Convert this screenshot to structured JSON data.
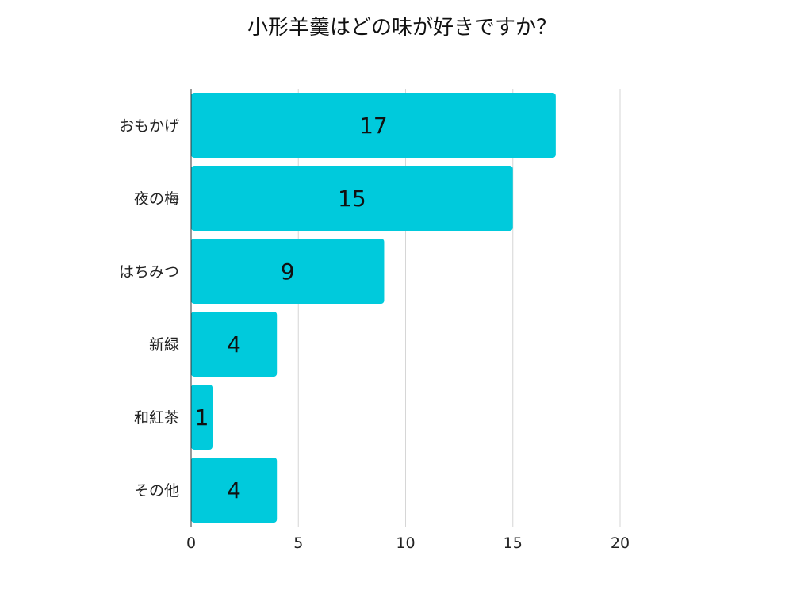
{
  "chart_data": {
    "type": "bar",
    "orientation": "horizontal",
    "title": "小形羊羹はどの味が好きですか？",
    "categories": [
      "おもかげ",
      "夜の梅",
      "はちみつ",
      "新緑",
      "和紅茶",
      "その他"
    ],
    "values": [
      17,
      15,
      9,
      4,
      1,
      4
    ],
    "xlim": [
      0,
      20
    ],
    "x_ticks": [
      0,
      5,
      10,
      15,
      20
    ],
    "xlabel": "",
    "ylabel": "",
    "grid": "vertical",
    "legend": "none",
    "data_labels": true,
    "bar_color": "#00cadc"
  }
}
